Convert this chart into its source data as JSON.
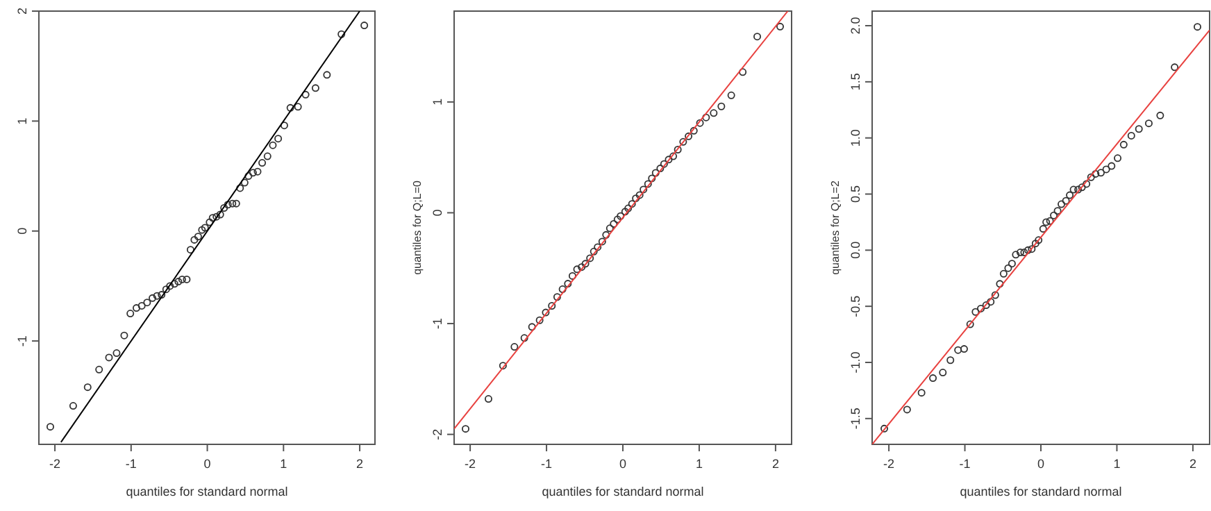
{
  "chart_data": [
    {
      "type": "scatter",
      "xlabel": "quantiles for standard normal",
      "xlim": [
        -2.21,
        2.2
      ],
      "ylim": [
        -1.94,
        2.0
      ],
      "xticks": [
        -2,
        -1,
        0,
        1,
        2
      ],
      "yticks": [
        -1,
        0,
        1,
        2
      ],
      "series": [
        {
          "color": "#333333",
          "marker": "circle",
          "x": [
            -2.06,
            -1.76,
            -1.57,
            -1.42,
            -1.29,
            -1.19,
            -1.09,
            -1.01,
            -0.93,
            -0.86,
            -0.79,
            -0.72,
            -0.66,
            -0.6,
            -0.54,
            -0.49,
            -0.43,
            -0.38,
            -0.33,
            -0.27,
            -0.22,
            -0.17,
            -0.12,
            -0.07,
            -0.03,
            0.03,
            0.07,
            0.12,
            0.17,
            0.22,
            0.27,
            0.33,
            0.38,
            0.43,
            0.49,
            0.54,
            0.6,
            0.66,
            0.72,
            0.79,
            0.86,
            0.93,
            1.01,
            1.09,
            1.19,
            1.29,
            1.42,
            1.57,
            1.76,
            2.06
          ],
          "values": [
            -1.78,
            -1.59,
            -1.42,
            -1.26,
            -1.15,
            -1.11,
            -0.95,
            -0.75,
            -0.7,
            -0.68,
            -0.65,
            -0.61,
            -0.59,
            -0.58,
            -0.53,
            -0.5,
            -0.48,
            -0.46,
            -0.44,
            -0.44,
            -0.17,
            -0.08,
            -0.05,
            0.01,
            0.03,
            0.08,
            0.12,
            0.13,
            0.15,
            0.21,
            0.24,
            0.25,
            0.25,
            0.39,
            0.44,
            0.5,
            0.53,
            0.54,
            0.62,
            0.68,
            0.78,
            0.84,
            0.96,
            1.12,
            1.13,
            1.24,
            1.3,
            1.42,
            1.79,
            1.87
          ]
        },
        {
          "type": "line",
          "color": "#000000",
          "x": [
            -1.92,
            2.0
          ],
          "values": [
            -1.92,
            2.0
          ]
        }
      ]
    },
    {
      "type": "scatter",
      "xlabel": "quantiles for standard normal",
      "ylabel": "quantiles for Q;L=0",
      "xlim": [
        -2.21,
        2.21
      ],
      "ylim": [
        -2.09,
        1.82
      ],
      "xticks": [
        -2,
        -1,
        0,
        1,
        2
      ],
      "yticks": [
        -2,
        -1,
        0,
        1
      ],
      "series": [
        {
          "color": "#333333",
          "marker": "circle",
          "x": [
            -2.06,
            -1.76,
            -1.57,
            -1.42,
            -1.29,
            -1.19,
            -1.09,
            -1.01,
            -0.93,
            -0.86,
            -0.79,
            -0.72,
            -0.66,
            -0.6,
            -0.54,
            -0.49,
            -0.43,
            -0.38,
            -0.33,
            -0.27,
            -0.22,
            -0.17,
            -0.12,
            -0.07,
            -0.03,
            0.03,
            0.07,
            0.12,
            0.17,
            0.22,
            0.27,
            0.33,
            0.38,
            0.43,
            0.49,
            0.54,
            0.6,
            0.66,
            0.72,
            0.79,
            0.86,
            0.93,
            1.01,
            1.09,
            1.19,
            1.29,
            1.42,
            1.57,
            1.76,
            2.06
          ],
          "values": [
            -1.95,
            -1.68,
            -1.38,
            -1.21,
            -1.13,
            -1.03,
            -0.97,
            -0.9,
            -0.84,
            -0.76,
            -0.69,
            -0.64,
            -0.57,
            -0.51,
            -0.49,
            -0.46,
            -0.41,
            -0.35,
            -0.31,
            -0.26,
            -0.2,
            -0.14,
            -0.1,
            -0.06,
            -0.03,
            0.01,
            0.04,
            0.08,
            0.13,
            0.16,
            0.21,
            0.26,
            0.31,
            0.36,
            0.4,
            0.44,
            0.48,
            0.51,
            0.57,
            0.64,
            0.69,
            0.74,
            0.81,
            0.86,
            0.9,
            0.96,
            1.06,
            1.27,
            1.59,
            1.68
          ]
        },
        {
          "type": "line",
          "color": "#e8413f",
          "x": [
            -2.21,
            2.16
          ],
          "values": [
            -1.95,
            1.82
          ]
        }
      ]
    },
    {
      "type": "scatter",
      "xlabel": "quantiles for standard normal",
      "ylabel": "quantiles for Q;L=2",
      "xlim": [
        -2.22,
        2.22
      ],
      "ylim": [
        -1.73,
        2.13
      ],
      "xticks": [
        -2,
        -1,
        0,
        1,
        2
      ],
      "yticks": [
        {
          "value": -1.5,
          "label": "-1.5"
        },
        {
          "value": -1,
          "label": "-1.0"
        },
        {
          "value": -0.5,
          "label": "-0.5"
        },
        {
          "value": 0,
          "label": "0.0"
        },
        {
          "value": 0.5,
          "label": "0.5"
        },
        {
          "value": 1,
          "label": "1.0"
        },
        {
          "value": 1.5,
          "label": "1.5"
        },
        {
          "value": 2,
          "label": "2.0"
        }
      ],
      "series": [
        {
          "color": "#333333",
          "marker": "circle",
          "x": [
            -2.06,
            -1.76,
            -1.57,
            -1.42,
            -1.29,
            -1.19,
            -1.09,
            -1.01,
            -0.93,
            -0.86,
            -0.79,
            -0.72,
            -0.66,
            -0.6,
            -0.54,
            -0.49,
            -0.43,
            -0.38,
            -0.33,
            -0.27,
            -0.22,
            -0.17,
            -0.12,
            -0.07,
            -0.03,
            0.03,
            0.07,
            0.12,
            0.17,
            0.22,
            0.27,
            0.33,
            0.38,
            0.43,
            0.49,
            0.54,
            0.6,
            0.66,
            0.72,
            0.79,
            0.86,
            0.93,
            1.01,
            1.09,
            1.19,
            1.29,
            1.42,
            1.57,
            1.76,
            2.06
          ],
          "values": [
            -1.59,
            -1.42,
            -1.27,
            -1.14,
            -1.09,
            -0.98,
            -0.89,
            -0.88,
            -0.66,
            -0.55,
            -0.52,
            -0.49,
            -0.46,
            -0.4,
            -0.3,
            -0.21,
            -0.16,
            -0.12,
            -0.04,
            -0.02,
            -0.02,
            0.0,
            0.01,
            0.06,
            0.09,
            0.19,
            0.25,
            0.26,
            0.31,
            0.35,
            0.41,
            0.44,
            0.49,
            0.54,
            0.54,
            0.56,
            0.59,
            0.65,
            0.68,
            0.69,
            0.72,
            0.75,
            0.82,
            0.94,
            1.02,
            1.08,
            1.13,
            1.2,
            1.63,
            1.99
          ]
        },
        {
          "type": "line",
          "color": "#e8413f",
          "x": [
            -2.22,
            2.22
          ],
          "values": [
            -1.73,
            1.96
          ]
        }
      ]
    }
  ]
}
